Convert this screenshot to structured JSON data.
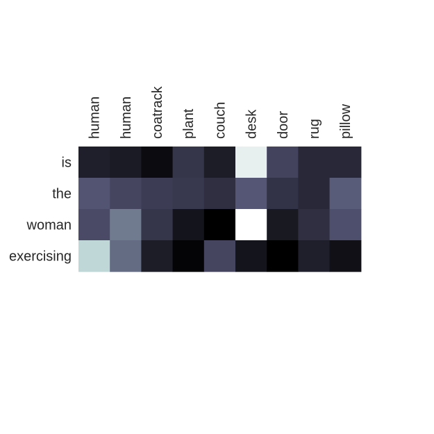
{
  "chart_data": {
    "type": "heatmap",
    "title": "",
    "xlabel": "",
    "ylabel": "",
    "x_labels": [
      "human",
      "human",
      "coatrack",
      "plant",
      "couch",
      "desk",
      "door",
      "rug",
      "pillow"
    ],
    "y_labels": [
      "is",
      "the",
      "woman",
      "exercising"
    ],
    "colormap": "bone",
    "grid": false,
    "legend": "none",
    "colorbar": false,
    "values": [
      [
        0.14,
        0.12,
        0.05,
        0.24,
        0.13,
        0.93,
        0.3,
        0.18,
        0.18
      ],
      [
        0.37,
        0.31,
        0.27,
        0.25,
        0.21,
        0.38,
        0.23,
        0.18,
        0.4
      ],
      [
        0.33,
        0.5,
        0.24,
        0.09,
        0.0,
        1.0,
        0.11,
        0.21,
        0.35
      ],
      [
        0.82,
        0.45,
        0.13,
        0.02,
        0.31,
        0.09,
        0.0,
        0.14,
        0.07
      ]
    ]
  }
}
